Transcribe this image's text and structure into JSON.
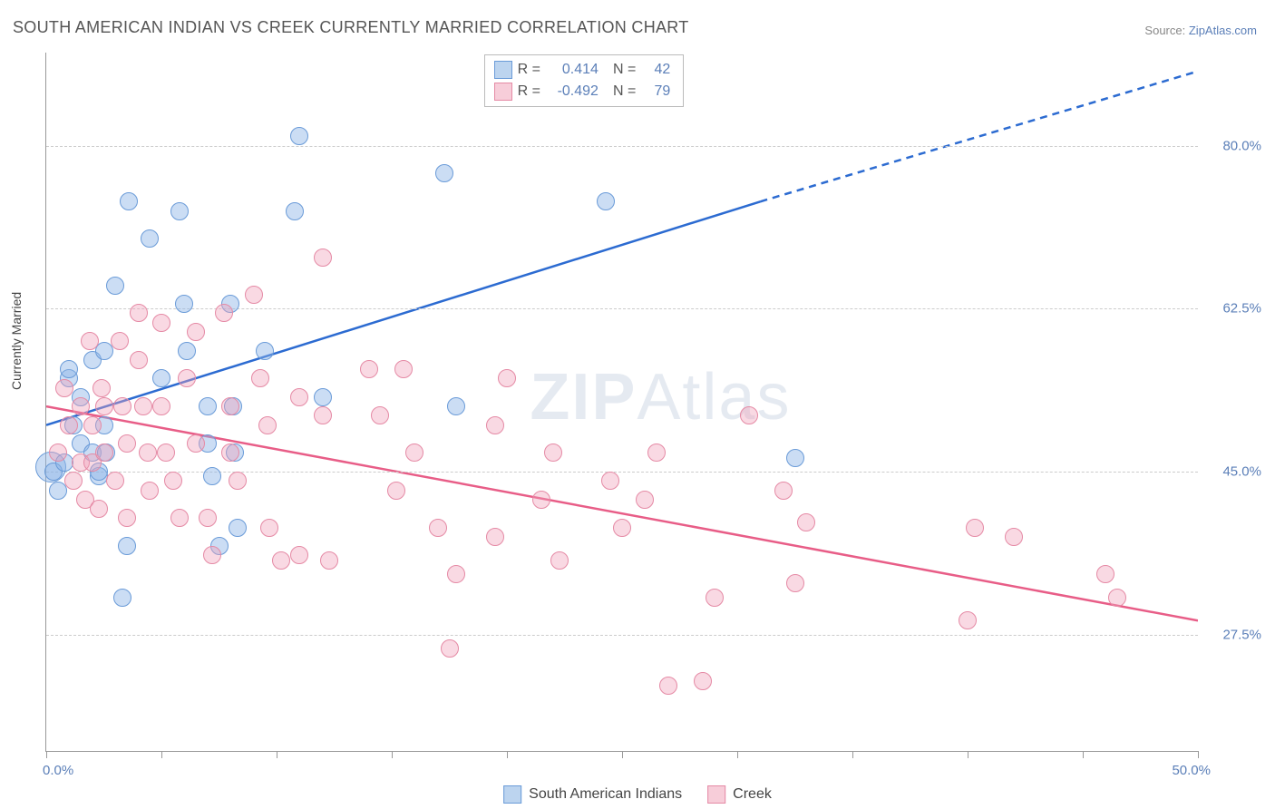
{
  "title": "SOUTH AMERICAN INDIAN VS CREEK CURRENTLY MARRIED CORRELATION CHART",
  "source_label": "Source:",
  "source_name": "ZipAtlas.com",
  "ylabel": "Currently Married",
  "watermark_a": "ZIP",
  "watermark_b": "Atlas",
  "chart": {
    "type": "scatter-correlation",
    "background_color": "#ffffff",
    "grid_color": "#cccccc",
    "axis_color": "#999999",
    "tick_label_color": "#5b7fb8",
    "xlim": [
      0,
      50
    ],
    "ylim": [
      15,
      90
    ],
    "x_min_label": "0.0%",
    "x_max_label": "50.0%",
    "x_ticks": [
      0,
      5,
      10,
      15,
      20,
      25,
      30,
      35,
      40,
      45,
      50
    ],
    "y_grid": [
      {
        "value": 27.5,
        "label": "27.5%"
      },
      {
        "value": 45.0,
        "label": "45.0%"
      },
      {
        "value": 62.5,
        "label": "62.5%"
      },
      {
        "value": 80.0,
        "label": "80.0%"
      }
    ],
    "series": [
      {
        "name": "South American Indians",
        "fill": "rgba(140, 180, 230, 0.45)",
        "stroke": "#6a9bd8",
        "line_color": "#2c6bd1",
        "swatch_fill": "#bcd4ef",
        "swatch_stroke": "#6a9bd8",
        "marker_radius": 9,
        "R_label": "R =",
        "R_value": "0.414",
        "N_label": "N =",
        "N_value": "42",
        "regression": {
          "x1": 0,
          "y1": 50,
          "x2": 31,
          "y2": 74,
          "x2_dash": 50,
          "y2_dash": 88
        },
        "points": [
          [
            0.3,
            45
          ],
          [
            0.5,
            43
          ],
          [
            1,
            55
          ],
          [
            1,
            56
          ],
          [
            1.2,
            50
          ],
          [
            1.5,
            53
          ],
          [
            1.5,
            48
          ],
          [
            0.8,
            46
          ],
          [
            2,
            57
          ],
          [
            2,
            47
          ],
          [
            2.3,
            44.5
          ],
          [
            2.5,
            58
          ],
          [
            2.5,
            50
          ],
          [
            2.6,
            47
          ],
          [
            2.3,
            45
          ],
          [
            3,
            65
          ],
          [
            3.3,
            31.5
          ],
          [
            3.5,
            37
          ],
          [
            3.6,
            74
          ],
          [
            4.5,
            70
          ],
          [
            5,
            55
          ],
          [
            5.8,
            73
          ],
          [
            6,
            63
          ],
          [
            6.1,
            58
          ],
          [
            7,
            52
          ],
          [
            7,
            48
          ],
          [
            7.2,
            44.5
          ],
          [
            7.5,
            37
          ],
          [
            8,
            63
          ],
          [
            8.1,
            52
          ],
          [
            8.2,
            47
          ],
          [
            8.3,
            39
          ],
          [
            9.5,
            58
          ],
          [
            10.8,
            73
          ],
          [
            11,
            81
          ],
          [
            12,
            53
          ],
          [
            17.3,
            77
          ],
          [
            17.8,
            52
          ],
          [
            24.3,
            74
          ],
          [
            32.5,
            46.5
          ]
        ],
        "big_point": {
          "xy": [
            0.2,
            45.5
          ],
          "r": 16
        }
      },
      {
        "name": "Creek",
        "fill": "rgba(240, 160, 185, 0.40)",
        "stroke": "#e58aa5",
        "line_color": "#e85d87",
        "swatch_fill": "#f7cdd9",
        "swatch_stroke": "#e58aa5",
        "marker_radius": 9,
        "R_label": "R =",
        "R_value": "-0.492",
        "N_label": "N =",
        "N_value": "79",
        "regression": {
          "x1": 0,
          "y1": 52,
          "x2": 50,
          "y2": 29
        },
        "points": [
          [
            0.5,
            47
          ],
          [
            0.8,
            54
          ],
          [
            1,
            50
          ],
          [
            1.2,
            44
          ],
          [
            1.5,
            52
          ],
          [
            1.5,
            46
          ],
          [
            1.7,
            42
          ],
          [
            1.9,
            59
          ],
          [
            2,
            50
          ],
          [
            2,
            46
          ],
          [
            2.3,
            41
          ],
          [
            2.4,
            54
          ],
          [
            2.5,
            52
          ],
          [
            2.5,
            47
          ],
          [
            3,
            44
          ],
          [
            3.2,
            59
          ],
          [
            3.3,
            52
          ],
          [
            3.5,
            48
          ],
          [
            3.5,
            40
          ],
          [
            4,
            62
          ],
          [
            4,
            57
          ],
          [
            4.2,
            52
          ],
          [
            4.4,
            47
          ],
          [
            4.5,
            43
          ],
          [
            5,
            61
          ],
          [
            5,
            52
          ],
          [
            5.2,
            47
          ],
          [
            5.5,
            44
          ],
          [
            5.8,
            40
          ],
          [
            6.1,
            55
          ],
          [
            6.5,
            60
          ],
          [
            6.5,
            48
          ],
          [
            7,
            40
          ],
          [
            7.2,
            36
          ],
          [
            7.7,
            62
          ],
          [
            8,
            52
          ],
          [
            8,
            47
          ],
          [
            8.3,
            44
          ],
          [
            9,
            64
          ],
          [
            9.3,
            55
          ],
          [
            9.6,
            50
          ],
          [
            9.7,
            39
          ],
          [
            10.2,
            35.5
          ],
          [
            11,
            53
          ],
          [
            11,
            36
          ],
          [
            12,
            68
          ],
          [
            12,
            51
          ],
          [
            12.3,
            35.5
          ],
          [
            14,
            56
          ],
          [
            14.5,
            51
          ],
          [
            15.2,
            43
          ],
          [
            15.5,
            56
          ],
          [
            16,
            47
          ],
          [
            17,
            39
          ],
          [
            17.5,
            26
          ],
          [
            17.8,
            34
          ],
          [
            19.5,
            38
          ],
          [
            19.5,
            50
          ],
          [
            20,
            55
          ],
          [
            21.5,
            42
          ],
          [
            22,
            47
          ],
          [
            22.3,
            35.5
          ],
          [
            24.5,
            44
          ],
          [
            25,
            39
          ],
          [
            26,
            42
          ],
          [
            26.5,
            47
          ],
          [
            27,
            22
          ],
          [
            28.5,
            22.5
          ],
          [
            29,
            31.5
          ],
          [
            30.5,
            51
          ],
          [
            32,
            43
          ],
          [
            33,
            39.5
          ],
          [
            32.5,
            33
          ],
          [
            40,
            29
          ],
          [
            40.3,
            39
          ],
          [
            42,
            38
          ],
          [
            46.5,
            31.5
          ],
          [
            46,
            34
          ]
        ]
      }
    ]
  },
  "bottom_legend": [
    {
      "label": "South American Indians",
      "fill": "#bcd4ef",
      "stroke": "#6a9bd8"
    },
    {
      "label": "Creek",
      "fill": "#f7cdd9",
      "stroke": "#e58aa5"
    }
  ]
}
